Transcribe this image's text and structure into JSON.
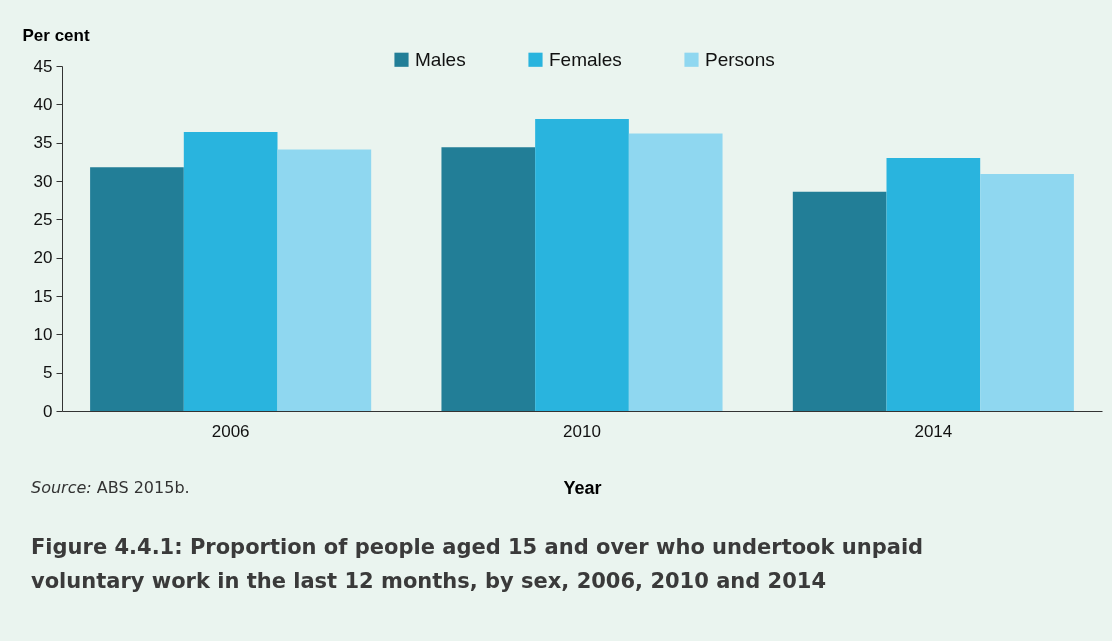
{
  "chart_data": {
    "type": "bar",
    "title": "Figure 4.4.1: Proportion of people aged 15 and over who undertook unpaid voluntary work in the last 12 months, by sex, 2006, 2010 and 2014",
    "xlabel": "Year",
    "ylabel": "Per cent",
    "annotations": [
      "Source: ABS 2015b."
    ],
    "categories": [
      "2006",
      "2010",
      "2014"
    ],
    "series": [
      {
        "name": "Males",
        "color": "#227e97",
        "values": [
          31.8,
          34.4,
          28.6
        ]
      },
      {
        "name": "Females",
        "color": "#29b4de",
        "values": [
          36.4,
          38.1,
          33.0
        ]
      },
      {
        "name": "Persons",
        "color": "#8fd7f0",
        "values": [
          34.1,
          36.2,
          30.9
        ]
      }
    ],
    "ylim": [
      0,
      45
    ],
    "yticks": [
      0,
      5,
      10,
      15,
      20,
      25,
      30,
      35,
      40,
      45
    ],
    "grid": false,
    "legend": "top"
  }
}
